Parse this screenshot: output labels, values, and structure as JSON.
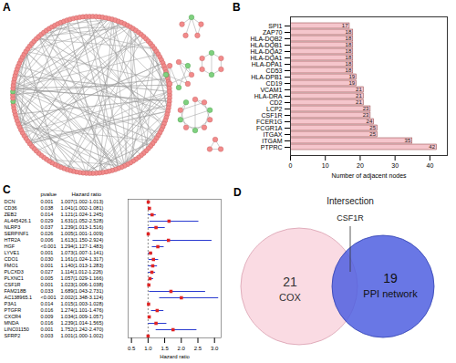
{
  "panel_a": {
    "title": "A",
    "type": "network",
    "ring": {
      "nodes": 150,
      "green": [
        73,
        76
      ],
      "edges": 340
    },
    "clusters": [
      {
        "nodes": 5,
        "green": [
          0
        ],
        "edges": [
          [
            0,
            1
          ],
          [
            0,
            2
          ],
          [
            0,
            3
          ],
          [
            0,
            4
          ],
          [
            1,
            2
          ]
        ]
      },
      {
        "nodes": 6,
        "green": [
          0,
          3
        ],
        "edges": [
          [
            0,
            1
          ],
          [
            1,
            2
          ],
          [
            2,
            3
          ],
          [
            3,
            4
          ],
          [
            4,
            5
          ],
          [
            5,
            0
          ],
          [
            0,
            3
          ]
        ]
      },
      {
        "nodes": 8,
        "green": [
          1,
          4,
          6
        ],
        "edges": [
          [
            0,
            1
          ],
          [
            0,
            2
          ],
          [
            0,
            3
          ],
          [
            1,
            4
          ],
          [
            2,
            5
          ],
          [
            3,
            6
          ],
          [
            4,
            7
          ],
          [
            5,
            7
          ],
          [
            6,
            7
          ],
          [
            1,
            2
          ]
        ]
      },
      {
        "nodes": 10,
        "green": [
          2,
          5,
          7,
          9
        ],
        "edges": [
          [
            0,
            1
          ],
          [
            0,
            2
          ],
          [
            1,
            3
          ],
          [
            2,
            4
          ],
          [
            3,
            5
          ],
          [
            4,
            6
          ],
          [
            5,
            7
          ],
          [
            6,
            8
          ],
          [
            7,
            9
          ],
          [
            8,
            9
          ],
          [
            0,
            5
          ],
          [
            2,
            7
          ],
          [
            1,
            8
          ]
        ]
      },
      {
        "nodes": 3,
        "green": [],
        "edges": [
          [
            0,
            1
          ],
          [
            1,
            2
          ],
          [
            2,
            0
          ]
        ]
      }
    ]
  },
  "chart_data": [
    {
      "title": "B",
      "type": "bar",
      "orientation": "horizontal",
      "categories": [
        "SPI1",
        "ZAP70",
        "HLA-DQB2",
        "HLA-DQB1",
        "HLA-DQA2",
        "HLA-DQA1",
        "HLA-DPA1",
        "CD53",
        "HLA-DPB1",
        "CD19",
        "VCAM1",
        "HLA-DRA",
        "CD2",
        "LCP2",
        "CSF1R",
        "FCER1G",
        "FCGR1A",
        "ITGAX",
        "ITGAM",
        "PTPRC"
      ],
      "values": [
        17,
        18,
        18,
        18,
        18,
        18,
        18,
        18,
        19,
        19,
        21,
        21,
        21,
        23,
        23,
        24,
        25,
        25,
        35,
        42
      ],
      "color": "#f5c6cc",
      "data_labels": true,
      "xlim": [
        0,
        45
      ],
      "xticks": [
        0,
        10,
        20,
        30,
        40
      ],
      "xlabel": "Number of adjacent nodes"
    },
    {
      "title": "C",
      "type": "forest",
      "marker": "square",
      "color": "#e02424",
      "columns": [
        "pvalue",
        "Hazard ratio"
      ],
      "categories": [
        "DCN",
        "CD36",
        "ZEB2",
        "AL445426.1",
        "NLRP3",
        "SERPINF1",
        "HTR2A",
        "HGF",
        "LYVE1",
        "CDO1",
        "FMO1",
        "PLCXD3",
        "PLXNC1",
        "CSF1R",
        "FAM218B",
        "AC138965.1",
        "P3A1",
        "PTGFR",
        "CXCR4",
        "MNDA",
        "LINC01150",
        "SFRP2"
      ],
      "pvalues": [
        "0.001",
        "0.038",
        "0.014",
        "0.029",
        "0.037",
        "0.026",
        "0.006",
        "<0.001",
        "0.001",
        "0.030",
        "0.001",
        "0.027",
        "0.005",
        "0.001",
        "0.033",
        "<0.001",
        "0.014",
        "0.016",
        "0.009",
        "0.016",
        "0.001",
        "0.003"
      ],
      "values": [
        1.007,
        1.041,
        1.121,
        1.631,
        1.239,
        1.005,
        1.613,
        1.294,
        1.073,
        1.161,
        1.14,
        1.114,
        1.057,
        1.023,
        1.689,
        2.002,
        1.015,
        1.274,
        1.034,
        1.239,
        1.752,
        1.001
      ],
      "lower": [
        1.002,
        1.002,
        1.024,
        1.052,
        1.013,
        1.001,
        1.15,
        1.127,
        1.007,
        1.024,
        1.013,
        1.012,
        1.029,
        1.006,
        1.043,
        1.348,
        1.003,
        1.101,
        1.009,
        1.014,
        1.242,
        1.0
      ],
      "upper": [
        1.013,
        1.081,
        1.245,
        2.528,
        1.516,
        1.009,
        2.924,
        1.483,
        1.141,
        1.317,
        1.283,
        1.226,
        1.166,
        1.038,
        2.731,
        3.124,
        1.028,
        1.476,
        1.057,
        1.565,
        2.47,
        1.002
      ],
      "value_labels": [
        "1.007(1.002-1.013)",
        "1.041(1.002-1.081)",
        "1.121(1.024-1.245)",
        "1.631(1.052-2.528)",
        "1.239(1.013-1.516)",
        "1.005(1.001-1.009)",
        "1.613(1.150-2.924)",
        "1.294(1.127-1.483)",
        "1.073(1.007-1.141)",
        "1.161(1.024-1.317)",
        "1.140(1.013-1.283)",
        "1.114(1.012-1.226)",
        "1.057(1.029-1.166)",
        "1.023(1.006-1.038)",
        "1.689(1.043-2.731)",
        "2.002(1.348-3.124)",
        "1.015(1.003-1.028)",
        "1.274(1.101-1.476)",
        "1.034(1.009-1.057)",
        "1.239(1.014-1.565)",
        "1.752(1.242-2.470)",
        "1.001(1.000-1.002)"
      ],
      "reference": 1,
      "xlim": [
        0.4,
        3.2
      ],
      "xticks": [
        0.5,
        {
          "value": 1,
          "label": "1.0"
        },
        1.5,
        {
          "value": 2,
          "label": "2.0"
        },
        2.5,
        {
          "value": 3,
          "label": "3.0"
        }
      ],
      "xlabel": "Hazard ratio"
    }
  ],
  "panel_d": {
    "title": "D",
    "type": "venn",
    "sets": [
      {
        "name": "COX",
        "value": 21,
        "color": "#fadbe3"
      },
      {
        "name": "PPI network",
        "value": 19,
        "color": "#4f5fe0"
      }
    ],
    "intersection": {
      "label": "Intersection",
      "items": [
        "CSF1R"
      ]
    }
  }
}
